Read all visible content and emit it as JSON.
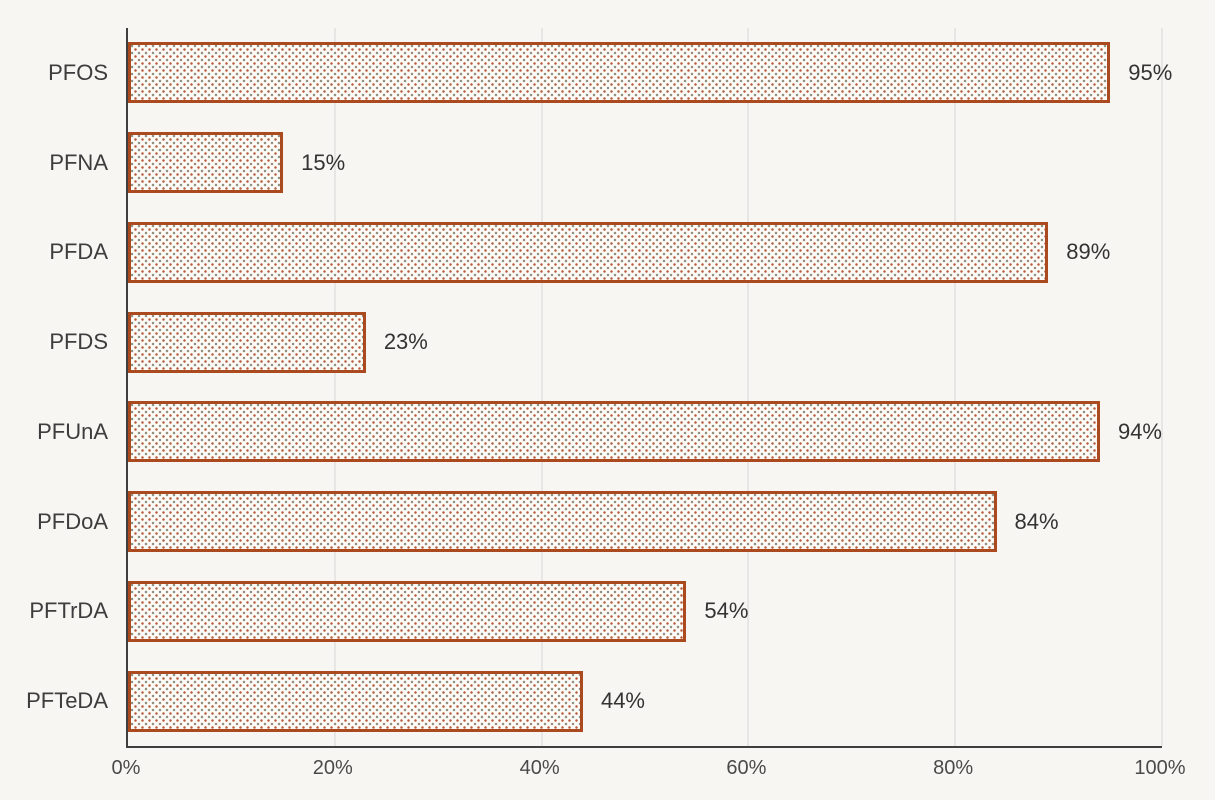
{
  "chart_data": {
    "type": "bar",
    "orientation": "horizontal",
    "title": "",
    "xlabel": "",
    "ylabel": "",
    "categories": [
      "PFOS",
      "PFNA",
      "PFDA",
      "PFDS",
      "PFUnA",
      "PFDoA",
      "PFTrDA",
      "PFTeDA"
    ],
    "values": [
      95,
      15,
      89,
      23,
      94,
      84,
      54,
      44
    ],
    "value_labels": [
      "95%",
      "15%",
      "89%",
      "23%",
      "94%",
      "84%",
      "54%",
      "44%"
    ],
    "x_ticks": [
      "0%",
      "20%",
      "40%",
      "60%",
      "80%",
      "100%"
    ],
    "x_tick_values": [
      0,
      20,
      40,
      60,
      80,
      100
    ],
    "xlim": [
      0,
      100
    ],
    "grid": "vertical-only",
    "legend_position": "none",
    "bar_style": "dotted-pattern-fill-with-solid-border"
  },
  "colors": {
    "background": "#f8f6f3",
    "bar_border": "#ab4a1e",
    "bar_fill": "#fdfbf7",
    "bar_dot_primary": "#b65c3e",
    "bar_dot_secondary": "#8f8d7c",
    "gridline": "#d8d7d4",
    "axis_line": "#3f3f3f",
    "category_text": "#3d3d3d",
    "value_text": "#333333",
    "tick_text": "#4a4a4a"
  }
}
